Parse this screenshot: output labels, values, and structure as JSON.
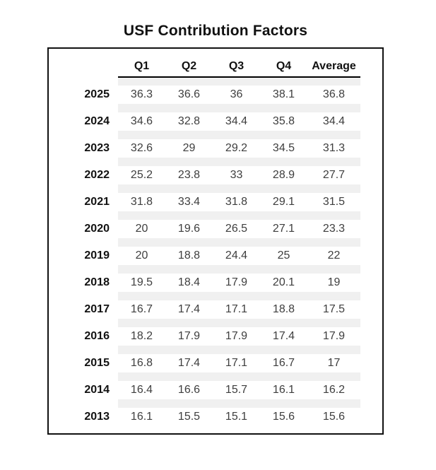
{
  "title": "USF Contribution Factors",
  "colors": {
    "border_black": "#111111",
    "band_gray": "#f0f0f0",
    "value_text": "#3e3e3e",
    "strong_text": "#111111"
  },
  "chart_data": {
    "type": "table",
    "title": "USF Contribution Factors",
    "columns": [
      "Q1",
      "Q2",
      "Q3",
      "Q4",
      "Average"
    ],
    "row_header_label": "",
    "rows": [
      {
        "year": 2025,
        "values": [
          36.3,
          36.6,
          36,
          38.1,
          36.8
        ]
      },
      {
        "year": 2024,
        "values": [
          34.6,
          32.8,
          34.4,
          35.8,
          34.4
        ]
      },
      {
        "year": 2023,
        "values": [
          32.6,
          29,
          29.2,
          34.5,
          31.3
        ]
      },
      {
        "year": 2022,
        "values": [
          25.2,
          23.8,
          33,
          28.9,
          27.7
        ]
      },
      {
        "year": 2021,
        "values": [
          31.8,
          33.4,
          31.8,
          29.1,
          31.5
        ]
      },
      {
        "year": 2020,
        "values": [
          20,
          19.6,
          26.5,
          27.1,
          23.3
        ]
      },
      {
        "year": 2019,
        "values": [
          20,
          18.8,
          24.4,
          25,
          22
        ]
      },
      {
        "year": 2018,
        "values": [
          19.5,
          18.4,
          17.9,
          20.1,
          19
        ]
      },
      {
        "year": 2017,
        "values": [
          16.7,
          17.4,
          17.1,
          18.8,
          17.5
        ]
      },
      {
        "year": 2016,
        "values": [
          18.2,
          17.9,
          17.9,
          17.4,
          17.9
        ]
      },
      {
        "year": 2015,
        "values": [
          16.8,
          17.4,
          17.1,
          16.7,
          17
        ]
      },
      {
        "year": 2014,
        "values": [
          16.4,
          16.6,
          15.7,
          16.1,
          16.2
        ]
      },
      {
        "year": 2013,
        "values": [
          16.1,
          15.5,
          15.1,
          15.6,
          15.6
        ]
      }
    ]
  }
}
